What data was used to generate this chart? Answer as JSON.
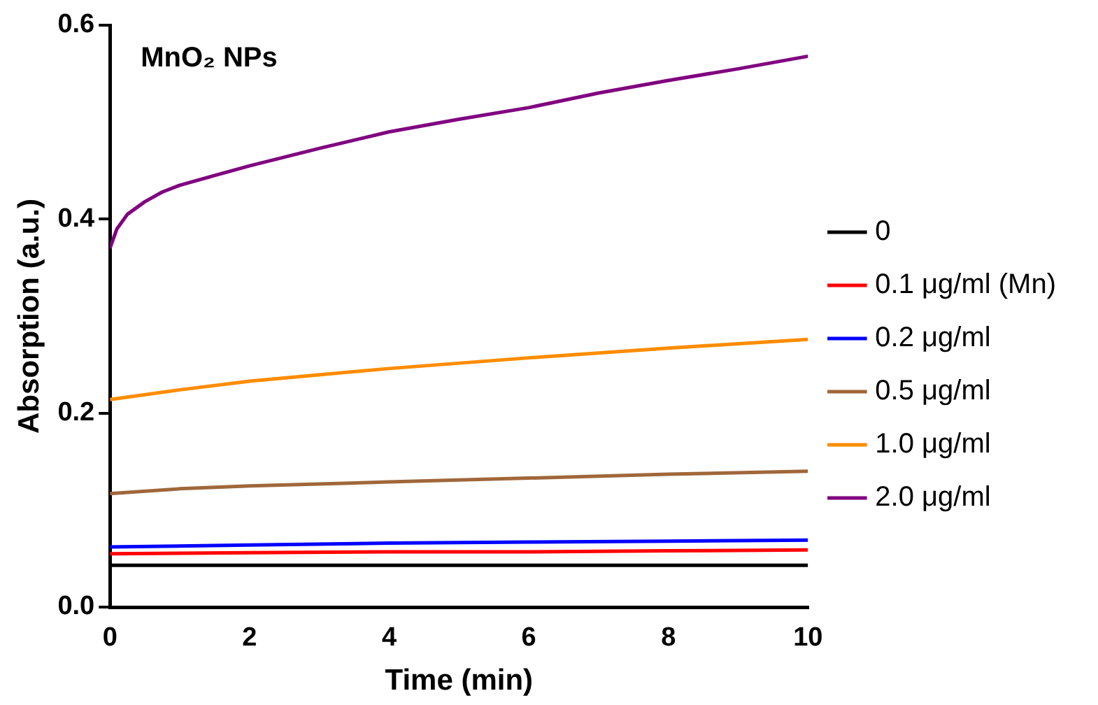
{
  "chart_data": {
    "type": "line",
    "xlabel": "Time (min)",
    "ylabel": "Absorption (a.u.)",
    "annotations": [
      "MnO₂ NPs"
    ],
    "xlim": [
      0,
      10
    ],
    "xticks": [
      0,
      2,
      4,
      6,
      8,
      10
    ],
    "ylim": [
      0,
      0.6
    ],
    "yticks": [
      {
        "value": 0,
        "label": "0.0"
      },
      0.2,
      0.4,
      0.6
    ],
    "grid": false,
    "legend": "right",
    "marker": "none",
    "line_style": "solid",
    "series": [
      {
        "name": "0",
        "color": "#000000",
        "x": [
          0,
          2,
          4,
          6,
          8,
          10
        ],
        "values": [
          0.043,
          0.043,
          0.043,
          0.043,
          0.043,
          0.043
        ]
      },
      {
        "name": "0.1 μg/ml (Mn)",
        "color": "#ff0000",
        "x": [
          0,
          2,
          4,
          6,
          8,
          10
        ],
        "values": [
          0.055,
          0.056,
          0.057,
          0.057,
          0.058,
          0.059
        ]
      },
      {
        "name": "0.2 μg/ml",
        "color": "#0000ff",
        "x": [
          0,
          2,
          4,
          6,
          8,
          10
        ],
        "values": [
          0.062,
          0.064,
          0.066,
          0.067,
          0.068,
          0.069
        ]
      },
      {
        "name": "0.5 μg/ml",
        "color": "#a0673a",
        "x": [
          0,
          1,
          2,
          4,
          6,
          8,
          10
        ],
        "values": [
          0.117,
          0.122,
          0.125,
          0.129,
          0.133,
          0.137,
          0.14
        ]
      },
      {
        "name": "1.0 μg/ml",
        "color": "#ff8c00",
        "x": [
          0,
          1,
          2,
          4,
          6,
          8,
          10
        ],
        "values": [
          0.214,
          0.224,
          0.233,
          0.246,
          0.257,
          0.267,
          0.276
        ]
      },
      {
        "name": "2.0 μg/ml",
        "color": "#800080",
        "x": [
          0,
          0.1,
          0.25,
          0.5,
          0.75,
          1,
          1.5,
          2,
          3,
          4,
          5,
          6,
          7,
          8,
          9,
          10
        ],
        "values": [
          0.37,
          0.39,
          0.405,
          0.418,
          0.428,
          0.435,
          0.445,
          0.455,
          0.473,
          0.49,
          0.503,
          0.515,
          0.53,
          0.543,
          0.555,
          0.568
        ]
      }
    ]
  }
}
